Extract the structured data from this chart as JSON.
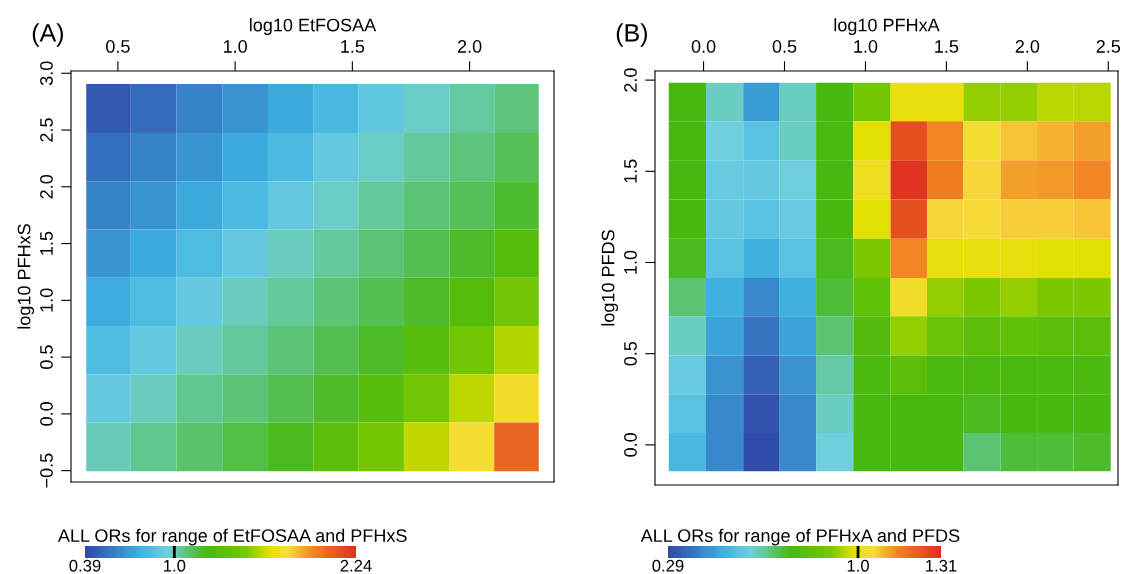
{
  "chart_data": [
    {
      "type": "heatmap",
      "xlabel": "log10 EtFOSAA",
      "ylabel": "log10 PFHxS",
      "clabel": "ALL ORs for range of EtFOSAA and PFHxS",
      "annotations": [
        "(A)"
      ],
      "x": [
        0.46,
        0.65,
        0.85,
        1.04,
        1.24,
        1.43,
        1.62,
        1.82,
        2.01,
        2.2
      ],
      "y": [
        2.69,
        2.26,
        1.84,
        1.41,
        0.99,
        0.56,
        0.14,
        -0.29
      ],
      "cells": [
        [
          0.45,
          0.52,
          0.6,
          0.66,
          0.74,
          0.81,
          0.89,
          0.98,
          1.03,
          1.08
        ],
        [
          0.53,
          0.6,
          0.67,
          0.74,
          0.82,
          0.9,
          0.98,
          1.04,
          1.08,
          1.13
        ],
        [
          0.6,
          0.67,
          0.74,
          0.82,
          0.9,
          0.98,
          1.04,
          1.09,
          1.13,
          1.18
        ],
        [
          0.67,
          0.74,
          0.83,
          0.9,
          0.99,
          1.04,
          1.09,
          1.14,
          1.19,
          1.29
        ],
        [
          0.75,
          0.83,
          0.91,
          0.99,
          1.04,
          1.09,
          1.14,
          1.19,
          1.3,
          1.44
        ],
        [
          0.83,
          0.91,
          0.99,
          1.04,
          1.09,
          1.14,
          1.19,
          1.31,
          1.44,
          1.58
        ],
        [
          0.91,
          0.99,
          1.05,
          1.09,
          1.14,
          1.19,
          1.31,
          1.45,
          1.59,
          1.74
        ],
        [
          1.0,
          1.05,
          1.1,
          1.15,
          1.2,
          1.32,
          1.46,
          1.6,
          1.76,
          2.05
        ]
      ],
      "xlim": [
        0.3,
        2.36
      ],
      "ylim": [
        -0.6,
        3.02
      ],
      "xticks": [
        0.5,
        {
          "value": 1,
          "label": "1.0"
        },
        1.5,
        {
          "value": 2,
          "label": "2.0"
        }
      ],
      "yticks": [
        {
          "value": -0.5,
          "label": "−0.5"
        },
        {
          "value": 0,
          "label": "0.0"
        },
        0.5,
        {
          "value": 1,
          "label": "1.0"
        },
        1.5,
        {
          "value": 2,
          "label": "2.0"
        },
        2.5,
        {
          "value": 3,
          "label": "3.0"
        }
      ],
      "clim": [
        0.39,
        2.24
      ],
      "cticks": [
        0.39,
        {
          "value": 1,
          "label": "1.0"
        },
        2.24
      ]
    },
    {
      "type": "heatmap",
      "xlabel": "log10 PFHxA",
      "ylabel": "log10 PFDS",
      "clabel": "ALL ORs for range of PFHxA and PFDS",
      "annotations": [
        "(B)"
      ],
      "x": [
        -0.1,
        0.13,
        0.36,
        0.58,
        0.81,
        1.04,
        1.27,
        1.49,
        1.72,
        1.95,
        2.17,
        2.4
      ],
      "y": [
        1.88,
        1.67,
        1.45,
        1.24,
        1.02,
        0.81,
        0.6,
        0.38,
        0.17,
        -0.04
      ],
      "cells": [
        [
          0.75,
          0.62,
          0.45,
          0.62,
          0.75,
          0.88,
          1.0,
          1.0,
          0.92,
          0.92,
          0.95,
          0.95
        ],
        [
          0.75,
          0.6,
          0.55,
          0.62,
          0.76,
          0.98,
          1.25,
          1.15,
          1.04,
          1.08,
          1.1,
          1.12
        ],
        [
          0.75,
          0.58,
          0.57,
          0.6,
          0.75,
          1.02,
          1.3,
          1.16,
          1.06,
          1.12,
          1.13,
          1.15
        ],
        [
          0.75,
          0.57,
          0.55,
          0.58,
          0.75,
          0.98,
          1.25,
          1.06,
          1.05,
          1.07,
          1.07,
          1.08
        ],
        [
          0.74,
          0.55,
          0.5,
          0.55,
          0.74,
          0.9,
          1.15,
          1.0,
          1.0,
          1.0,
          0.98,
          0.98
        ],
        [
          0.68,
          0.5,
          0.42,
          0.5,
          0.72,
          0.82,
          1.03,
          0.92,
          0.9,
          0.92,
          0.9,
          0.9
        ],
        [
          0.62,
          0.47,
          0.38,
          0.47,
          0.68,
          0.78,
          0.92,
          0.85,
          0.8,
          0.82,
          0.8,
          0.8
        ],
        [
          0.58,
          0.44,
          0.34,
          0.44,
          0.64,
          0.76,
          0.8,
          0.76,
          0.76,
          0.76,
          0.76,
          0.76
        ],
        [
          0.55,
          0.42,
          0.31,
          0.42,
          0.62,
          0.75,
          0.75,
          0.75,
          0.74,
          0.75,
          0.75,
          0.75
        ],
        [
          0.52,
          0.42,
          0.3,
          0.42,
          0.6,
          0.75,
          0.75,
          0.75,
          0.68,
          0.72,
          0.72,
          0.73
        ]
      ],
      "xlim": [
        -0.3,
        2.56
      ],
      "ylim": [
        -0.22,
        2.05
      ],
      "xticks": [
        {
          "value": 0,
          "label": "0.0"
        },
        0.5,
        {
          "value": 1,
          "label": "1.0"
        },
        1.5,
        {
          "value": 2,
          "label": "2.0"
        },
        2.5
      ],
      "yticks": [
        {
          "value": 0,
          "label": "0.0"
        },
        0.5,
        {
          "value": 1,
          "label": "1.0"
        },
        1.5,
        {
          "value": 2,
          "label": "2.0"
        }
      ],
      "clim": [
        0.29,
        1.31
      ],
      "cticks": [
        0.29,
        {
          "value": 1,
          "label": "1.0"
        },
        1.31
      ]
    }
  ]
}
